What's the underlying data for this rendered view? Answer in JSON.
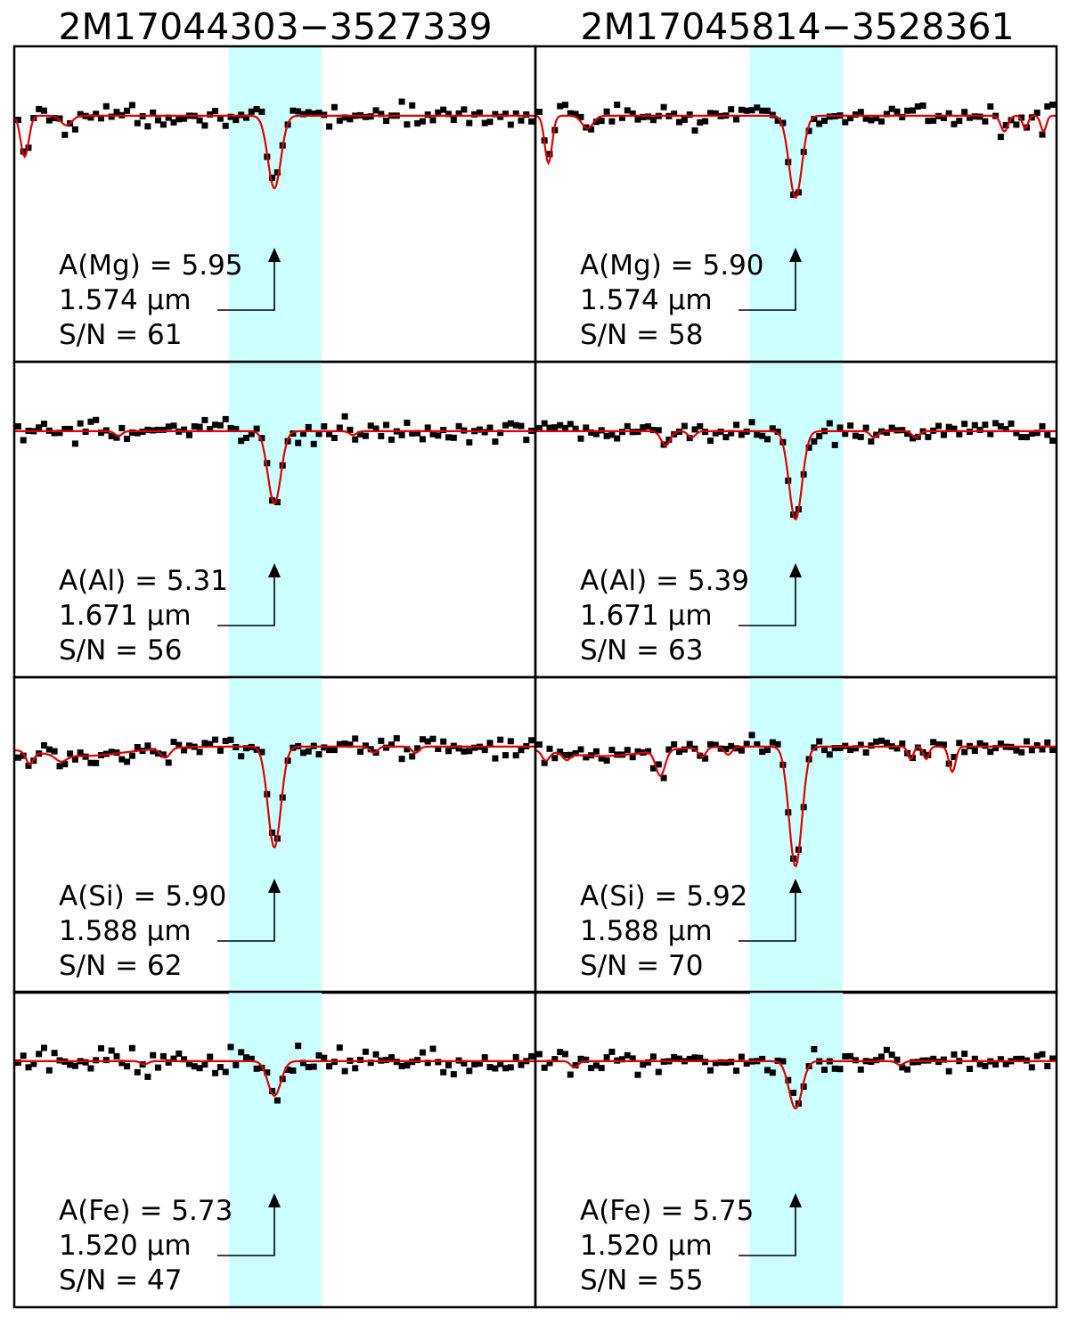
{
  "figure": {
    "columns": [
      {
        "star": "2M17044303−3527339"
      },
      {
        "star": "2M17045814−3528361"
      }
    ],
    "colors": {
      "band": "#ccffff",
      "model": "#e00000",
      "observed": "#000000",
      "frame": "#000000"
    },
    "marker": "arrow-up-icon"
  },
  "chart_data": [
    {
      "type": "scatter",
      "element": "Mg",
      "star": "2M17044303−3527339",
      "abundance_label": "A(Mg)  =  5.95",
      "wavelength_label": "1.574 μm",
      "snr_label": "S/N  =  61",
      "abundance": 5.95,
      "wavelength_um": 1.574,
      "snr": 61,
      "line_depth": 0.23,
      "secondary_lines": [
        {
          "x": -0.96,
          "d": 0.13,
          "w": 0.022
        },
        {
          "x": -0.8,
          "d": 0.03,
          "w": 0.03
        }
      ]
    },
    {
      "type": "scatter",
      "element": "Mg",
      "star": "2M17045814−3528361",
      "abundance_label": "A(Mg)  =  5.90",
      "wavelength_label": "1.574 μm",
      "snr_label": "S/N  =  58",
      "abundance": 5.9,
      "wavelength_um": 1.574,
      "snr": 58,
      "line_depth": 0.26,
      "secondary_lines": [
        {
          "x": -0.95,
          "d": 0.15,
          "w": 0.02
        },
        {
          "x": -0.8,
          "d": 0.04,
          "w": 0.03
        },
        {
          "x": 0.8,
          "d": 0.05,
          "w": 0.02
        },
        {
          "x": 0.88,
          "d": 0.04,
          "w": 0.015
        },
        {
          "x": 0.95,
          "d": 0.05,
          "w": 0.015
        }
      ]
    },
    {
      "type": "scatter",
      "element": "Al",
      "star": "2M17044303−3527339",
      "abundance_label": "A(Al)  =  5.31",
      "wavelength_label": "1.671 μm",
      "snr_label": "S/N  =  56",
      "abundance": 5.31,
      "wavelength_um": 1.671,
      "snr": 56,
      "line_depth": 0.23,
      "secondary_lines": [
        {
          "x": -0.6,
          "d": 0.015,
          "w": 0.02
        },
        {
          "x": 0.3,
          "d": 0.012,
          "w": 0.02
        }
      ]
    },
    {
      "type": "scatter",
      "element": "Al",
      "star": "2M17045814−3528361",
      "abundance_label": "A(Al)  =  5.39",
      "wavelength_label": "1.671 μm",
      "snr_label": "S/N  =  63",
      "abundance": 5.39,
      "wavelength_um": 1.671,
      "snr": 63,
      "line_depth": 0.28,
      "secondary_lines": [
        {
          "x": -0.5,
          "d": 0.045,
          "w": 0.025
        },
        {
          "x": -0.4,
          "d": 0.02,
          "w": 0.02
        },
        {
          "x": 0.3,
          "d": 0.02,
          "w": 0.02
        },
        {
          "x": 0.46,
          "d": 0.02,
          "w": 0.02
        }
      ]
    },
    {
      "type": "scatter",
      "element": "Si",
      "star": "2M17044303−3527339",
      "abundance_label": "A(Si)  =  5.90",
      "wavelength_label": "1.588 μm",
      "snr_label": "S/N  =  62",
      "abundance": 5.9,
      "wavelength_um": 1.588,
      "snr": 62,
      "line_depth": 0.32,
      "secondary_lines": [
        {
          "x": -0.94,
          "d": 0.04,
          "w": 0.02
        },
        {
          "x": -0.82,
          "d": 0.02,
          "w": 0.03
        },
        {
          "x": -0.42,
          "d": 0.03,
          "w": 0.025
        },
        {
          "x": 0.38,
          "d": 0.02,
          "w": 0.02
        },
        {
          "x": 0.54,
          "d": 0.02,
          "w": 0.02
        }
      ]
    },
    {
      "type": "scatter",
      "element": "Si",
      "star": "2M17045814−3528361",
      "abundance_label": "A(Si)  =  5.92",
      "wavelength_label": "1.588 μm",
      "snr_label": "S/N  =  70",
      "abundance": 5.92,
      "wavelength_um": 1.588,
      "snr": 70,
      "line_depth": 0.38,
      "secondary_lines": [
        {
          "x": -0.96,
          "d": 0.03,
          "w": 0.02
        },
        {
          "x": -0.88,
          "d": 0.02,
          "w": 0.02
        },
        {
          "x": -0.52,
          "d": 0.08,
          "w": 0.025
        },
        {
          "x": -0.36,
          "d": 0.03,
          "w": 0.02
        },
        {
          "x": -0.26,
          "d": 0.025,
          "w": 0.02
        },
        {
          "x": 0.44,
          "d": 0.04,
          "w": 0.015
        },
        {
          "x": 0.5,
          "d": 0.04,
          "w": 0.015
        },
        {
          "x": 0.6,
          "d": 0.08,
          "w": 0.018
        }
      ]
    },
    {
      "type": "scatter",
      "element": "Fe",
      "star": "2M17044303−3527339",
      "abundance_label": "A(Fe)  =  5.73",
      "wavelength_label": "1.520 μm",
      "snr_label": "S/N  =  47",
      "abundance": 5.73,
      "wavelength_um": 1.52,
      "snr": 47,
      "line_depth": 0.11,
      "secondary_lines": [
        {
          "x": -0.5,
          "d": 0.01,
          "w": 0.02
        }
      ]
    },
    {
      "type": "scatter",
      "element": "Fe",
      "star": "2M17045814−3528361",
      "abundance_label": "A(Fe)  =  5.75",
      "wavelength_label": "1.520 μm",
      "snr_label": "S/N  =  55",
      "abundance": 5.75,
      "wavelength_um": 1.52,
      "snr": 55,
      "line_depth": 0.15,
      "secondary_lines": [
        {
          "x": -0.85,
          "d": 0.02,
          "w": 0.02
        },
        {
          "x": 0.4,
          "d": 0.012,
          "w": 0.02
        }
      ]
    }
  ]
}
